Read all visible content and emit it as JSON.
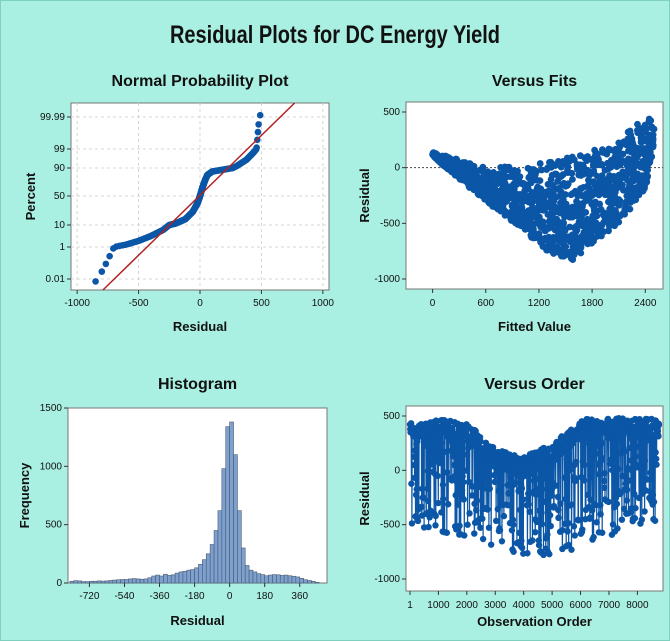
{
  "title": "Residual Plots for DC Energy Yield",
  "chart_data": [
    {
      "type": "scatter",
      "title": "Normal Probability Plot",
      "xlabel": "Residual",
      "ylabel": "Percent",
      "xlim": [
        -1050,
        1050
      ],
      "xticks": [
        -1000,
        -500,
        0,
        500,
        1000
      ],
      "xtick_labels": [
        "-1000",
        "-500",
        "0",
        "500",
        "1000"
      ],
      "ytick_labels": [
        "0.01",
        "1",
        "10",
        "50",
        "90",
        "99",
        "99.99"
      ],
      "grid": true,
      "points_color": "#0b56a6",
      "fit_line_color": "#b22222",
      "fit_line": {
        "x": [
          -790,
          770
        ],
        "percent": [
          0.003,
          99.998
        ]
      },
      "series": [
        {
          "x": [
            -850,
            -840,
            -820,
            -790,
            -750,
            -700,
            -600,
            -500,
            -400,
            -300,
            -200,
            -120,
            -60,
            -20,
            0,
            20,
            40,
            60,
            100,
            200,
            300,
            380,
            430,
            460,
            480,
            490
          ],
          "percent": [
            0.005,
            0.02,
            0.1,
            0.3,
            0.6,
            1,
            2,
            3.5,
            5.5,
            8,
            12,
            18,
            28,
            40,
            50,
            62,
            72,
            80,
            85,
            88,
            91,
            94,
            97,
            99,
            99.9,
            99.99
          ]
        }
      ]
    },
    {
      "type": "scatter",
      "title": "Versus Fits",
      "xlabel": "Fitted Value",
      "ylabel": "Residual",
      "xlim": [
        -300,
        2600
      ],
      "ylim": [
        -1000,
        500
      ],
      "xticks": [
        0,
        600,
        1200,
        1800,
        2400
      ],
      "yticks": [
        -1000,
        -500,
        0,
        500
      ],
      "reference_line": 0,
      "points_color": "#0b56a6",
      "description": "Fan-shaped scatter; lower boundary dips to about -850 near fitted value 1550; upper boundary rises to about 480 near 2400."
    },
    {
      "type": "bar",
      "title": "Histogram",
      "xlabel": "Residual",
      "ylabel": "Frequency",
      "xlim": [
        -830,
        500
      ],
      "ylim": [
        0,
        1500
      ],
      "xticks": [
        -720,
        -540,
        -360,
        -180,
        0,
        180,
        360
      ],
      "yticks": [
        0,
        500,
        1000,
        1500
      ],
      "bar_color": "#7da0cf",
      "bin_width": 20,
      "bin_start": -820,
      "values": [
        15,
        20,
        18,
        12,
        12,
        15,
        15,
        18,
        16,
        18,
        22,
        25,
        28,
        30,
        30,
        35,
        38,
        35,
        32,
        35,
        45,
        60,
        68,
        60,
        75,
        65,
        70,
        85,
        95,
        100,
        110,
        115,
        130,
        160,
        200,
        250,
        330,
        450,
        620,
        980,
        1340,
        1380,
        1100,
        620,
        300,
        150,
        110,
        95,
        80,
        72,
        62,
        68,
        72,
        70,
        65,
        68,
        62,
        58,
        52,
        40,
        28,
        22,
        15,
        5
      ]
    },
    {
      "type": "line",
      "title": "Versus Order",
      "xlabel": "Observation Order",
      "ylabel": "Residual",
      "xlim": [
        1,
        8760
      ],
      "ylim": [
        -1000,
        500
      ],
      "xticks": [
        1,
        1000,
        2000,
        3000,
        4000,
        5000,
        6000,
        7000,
        8000
      ],
      "yticks": [
        -1000,
        -500,
        0,
        500
      ],
      "points_color": "#0b56a6",
      "upper_envelope": {
        "x": [
          1,
          1000,
          2000,
          3000,
          4000,
          5000,
          6000,
          7000,
          8000,
          8760
        ],
        "y": [
          470,
          480,
          440,
          200,
          120,
          250,
          470,
          480,
          480,
          470
        ]
      },
      "lower_envelope": {
        "x": [
          1,
          1000,
          2000,
          3000,
          4000,
          5000,
          6000,
          7000,
          8000,
          8760
        ],
        "y": [
          -500,
          -560,
          -620,
          -700,
          -820,
          -800,
          -700,
          -620,
          -500,
          -480
        ]
      }
    }
  ]
}
